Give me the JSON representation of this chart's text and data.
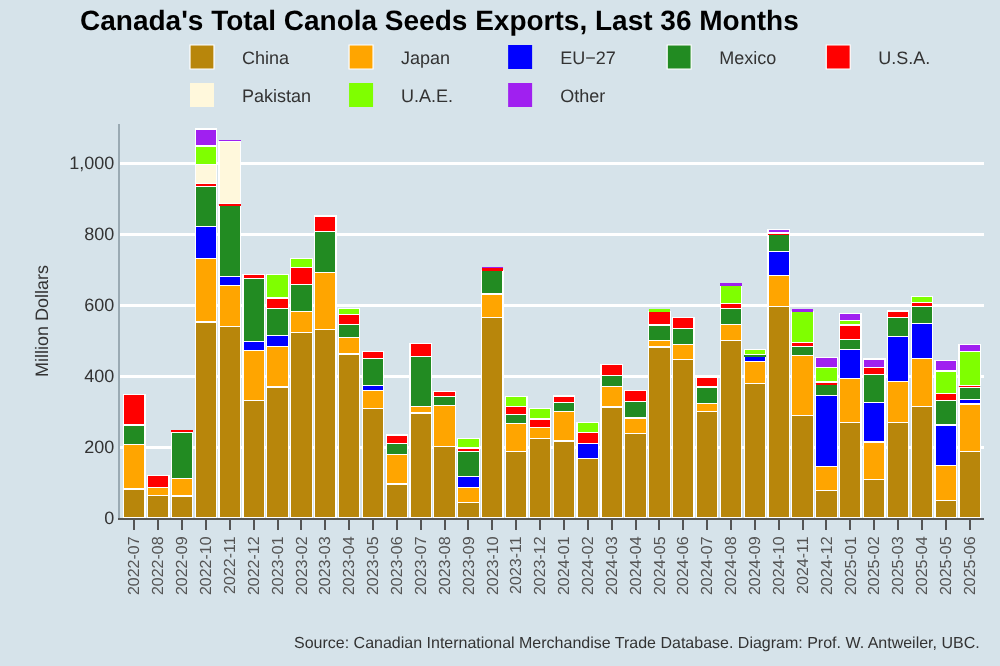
{
  "chart_data": {
    "type": "bar",
    "stacked": true,
    "title": "Canada's Total Canola Seeds Exports, Last 36 Months",
    "ylabel": "Million Dollars",
    "categories": [
      "2022-07",
      "2022-08",
      "2022-09",
      "2022-10",
      "2022-11",
      "2022-12",
      "2023-01",
      "2023-02",
      "2023-03",
      "2023-04",
      "2023-05",
      "2023-06",
      "2023-07",
      "2023-08",
      "2023-09",
      "2023-10",
      "2023-11",
      "2023-12",
      "2024-01",
      "2024-02",
      "2024-03",
      "2024-04",
      "2024-05",
      "2024-06",
      "2024-07",
      "2024-08",
      "2024-09",
      "2024-10",
      "2024-11",
      "2024-12",
      "2025-01",
      "2025-02",
      "2025-03",
      "2025-04",
      "2025-05",
      "2025-06"
    ],
    "series": [
      {
        "name": "China",
        "color": "#b8860b",
        "values": [
          82,
          63,
          62,
          552,
          540,
          330,
          369,
          523,
          532,
          462,
          309,
          96,
          296,
          202,
          43,
          566,
          188,
          224,
          217,
          168,
          313,
          238,
          482,
          446,
          301,
          501,
          378,
          595,
          289,
          77,
          270,
          108,
          270,
          315,
          50,
          188
        ]
      },
      {
        "name": "Japan",
        "color": "#ffa500",
        "values": [
          125,
          24,
          49,
          180,
          115,
          142,
          115,
          58,
          160,
          46,
          50,
          83,
          19,
          114,
          44,
          65,
          79,
          32,
          84,
          0,
          58,
          44,
          19,
          43,
          22,
          44,
          63,
          89,
          169,
          68,
          123,
          106,
          115,
          135,
          97,
          133
        ]
      },
      {
        "name": "EU−27",
        "color": "#0000ff",
        "values": [
          0,
          0,
          0,
          90,
          25,
          25,
          31,
          0,
          0,
          0,
          14,
          0,
          0,
          0,
          29,
          0,
          0,
          0,
          0,
          42,
          0,
          0,
          0,
          0,
          0,
          0,
          14,
          66,
          0,
          200,
          82,
          111,
          126,
          99,
          115,
          14
        ]
      },
      {
        "name": "Mexico",
        "color": "#228b22",
        "values": [
          55,
          0,
          130,
          111,
          200,
          178,
          75,
          77,
          116,
          37,
          77,
          31,
          141,
          26,
          72,
          66,
          25,
          0,
          25,
          0,
          31,
          46,
          43,
          46,
          46,
          45,
          5,
          48,
          26,
          31,
          29,
          80,
          53,
          46,
          68,
          33
        ]
      },
      {
        "name": "U.S.A.",
        "color": "#ff0000",
        "values": [
          85,
          33,
          7,
          9,
          5,
          10,
          30,
          48,
          43,
          29,
          20,
          24,
          35,
          14,
          9,
          6,
          23,
          23,
          18,
          31,
          30,
          31,
          37,
          31,
          28,
          15,
          0,
          5,
          10,
          7,
          40,
          19,
          19,
          12,
          20,
          5
        ]
      },
      {
        "name": "Pakistan",
        "color": "#fff8dc",
        "values": [
          0,
          0,
          0,
          55,
          176,
          0,
          0,
          0,
          0,
          0,
          0,
          0,
          0,
          0,
          0,
          0,
          0,
          0,
          0,
          0,
          0,
          0,
          0,
          0,
          0,
          0,
          0,
          0,
          0,
          0,
          0,
          0,
          0,
          0,
          0,
          0
        ]
      },
      {
        "name": "U.A.E.",
        "color": "#7fff00",
        "values": [
          0,
          0,
          0,
          51,
          0,
          0,
          65,
          26,
          0,
          16,
          0,
          0,
          0,
          0,
          27,
          0,
          27,
          29,
          0,
          29,
          0,
          0,
          7,
          0,
          0,
          50,
          14,
          0,
          87,
          41,
          12,
          0,
          0,
          17,
          64,
          97
        ]
      },
      {
        "name": "Other",
        "color": "#a020f0",
        "values": [
          0,
          0,
          0,
          48,
          4,
          0,
          0,
          0,
          0,
          0,
          0,
          0,
          0,
          0,
          0,
          3,
          0,
          0,
          0,
          0,
          0,
          0,
          0,
          0,
          0,
          8,
          0,
          9,
          7,
          29,
          20,
          24,
          0,
          0,
          29,
          19
        ]
      }
    ],
    "ylim": [
      0,
      1110
    ],
    "yticks": [
      0,
      200,
      400,
      600,
      800,
      {
        "value": 1000,
        "label": "1,000"
      }
    ],
    "grid": "y",
    "legend": "top",
    "annotations": [
      "Source: Canadian International Merchandise Trade Database. Diagram: Prof. W. Antweiler, UBC."
    ]
  }
}
